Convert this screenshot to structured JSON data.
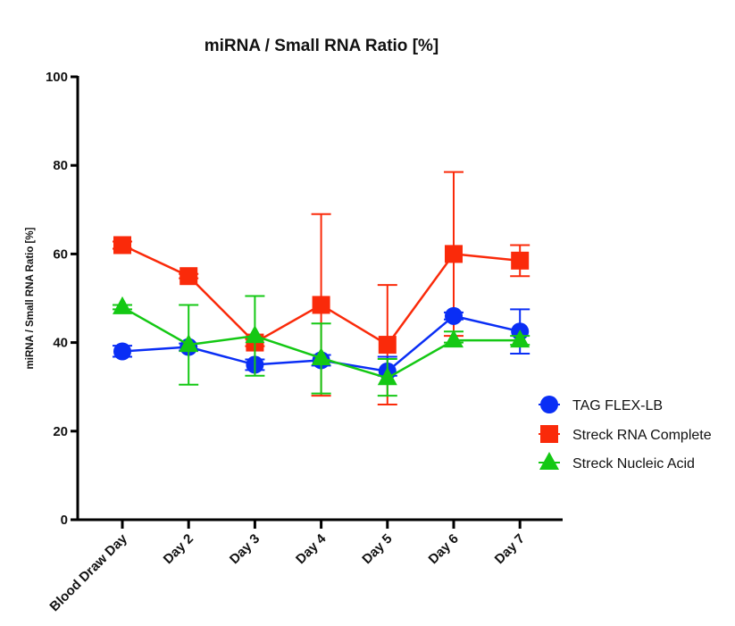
{
  "chart_data": {
    "type": "line",
    "title": "miRNA / Small RNA Ratio [%]",
    "xlabel": "",
    "ylabel": "miRNA / Small  RNA Ratio [%]",
    "ylim": [
      0,
      100
    ],
    "yticks": [
      0,
      20,
      40,
      60,
      80,
      100
    ],
    "ytick_labels": [
      "0",
      "20",
      "40",
      "60",
      "80",
      "100"
    ],
    "categories": [
      "Blood Draw Day",
      "Day 2",
      "Day 3",
      "Day 4",
      "Day 5",
      "Day 6",
      "Day 7"
    ],
    "grid": false,
    "legend_position": "right",
    "series": [
      {
        "name": "TAG FLEX-LB",
        "color": "#0a2ef5",
        "marker": "circle",
        "values": [
          38,
          39,
          35,
          36,
          33.5,
          46,
          42.5
        ],
        "err_low": [
          36.8,
          38.2,
          33.8,
          34.8,
          32.5,
          45.2,
          37.5
        ],
        "err_high": [
          39.3,
          39.8,
          36.2,
          37.2,
          36.8,
          46.8,
          47.5
        ]
      },
      {
        "name": "Streck RNA Complete",
        "color": "#fa2a0a",
        "marker": "square",
        "values": [
          62,
          55,
          40,
          48.5,
          39.5,
          60,
          58.5
        ],
        "err_low": [
          61.2,
          54.5,
          39.2,
          28,
          26,
          41.5,
          55
        ],
        "err_high": [
          62.8,
          55.5,
          40.8,
          69,
          53,
          78.5,
          62
        ]
      },
      {
        "name": "Streck Nucleic Acid",
        "color": "#14c814",
        "marker": "triangle",
        "values": [
          48,
          39.5,
          41.5,
          36.5,
          32,
          40.5,
          40.5
        ],
        "err_low": [
          47.5,
          30.5,
          32.5,
          28.5,
          28,
          40,
          39.5
        ],
        "err_high": [
          48.5,
          48.5,
          50.5,
          44.3,
          36.3,
          42.5,
          41.5
        ]
      }
    ]
  }
}
